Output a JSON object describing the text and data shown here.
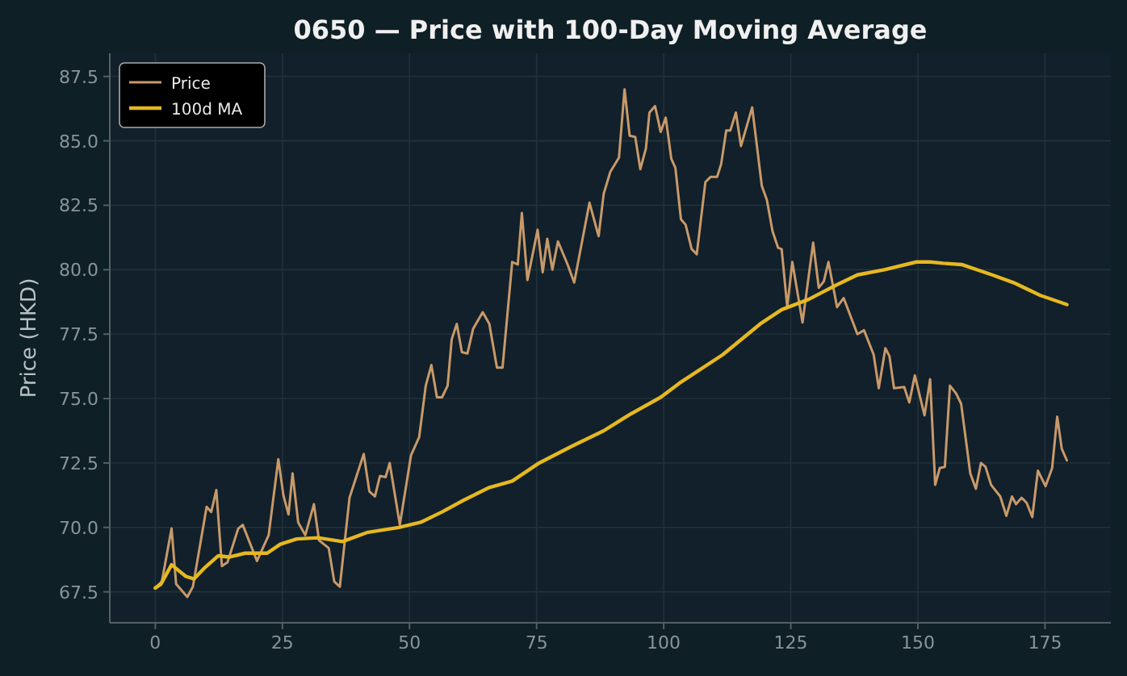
{
  "chart_data": {
    "type": "line",
    "title": "0650 — Price with 100-Day Moving Average",
    "ylabel": "Price (HKD)",
    "xlim": [
      -8.95,
      187.95
    ],
    "ylim": [
      66.3,
      88.4
    ],
    "xticks": [
      0,
      25,
      50,
      75,
      100,
      125,
      150,
      175
    ],
    "yticks": [
      {
        "value": 67.5,
        "label": "67.5"
      },
      {
        "value": 70,
        "label": "70.0"
      },
      {
        "value": 72.5,
        "label": "72.5"
      },
      {
        "value": 75,
        "label": "75.0"
      },
      {
        "value": 77.5,
        "label": "77.5"
      },
      {
        "value": 80,
        "label": "80.0"
      },
      {
        "value": 82.5,
        "label": "82.5"
      },
      {
        "value": 85,
        "label": "85.0"
      },
      {
        "value": 87.5,
        "label": "87.5"
      }
    ],
    "grid": true,
    "legend": "top left",
    "line_style": "solid",
    "marker": "none",
    "series": [
      {
        "name": "Price",
        "color": "#c8996a",
        "x": [
          0,
          1.3,
          3.2,
          4.1,
          6.3,
          7.4,
          10.1,
          11,
          12,
          13.1,
          14.2,
          16.3,
          17.2,
          20,
          22.3,
          24.2,
          25.2,
          26.2,
          27,
          28.1,
          29.5,
          31.2,
          32.2,
          34.1,
          35.2,
          36.3,
          38.2,
          41,
          42.1,
          43.2,
          44.2,
          45.3,
          46.1,
          48.1,
          50.3,
          51.9,
          53.2,
          54.3,
          55.4,
          56.4,
          57.5,
          58.3,
          59.3,
          60.3,
          61.4,
          62.5,
          64.4,
          65.7,
          67.2,
          68.3,
          70.2,
          71.3,
          72.1,
          73.2,
          75.2,
          76.2,
          77.1,
          78.1,
          79.2,
          81.1,
          82.4,
          85.4,
          87.2,
          88.2,
          89.5,
          91.2,
          92.3,
          93.3,
          94.4,
          95.4,
          96.5,
          97.2,
          98.3,
          99.4,
          100.4,
          101.5,
          102.3,
          103.4,
          104.3,
          105.5,
          106.5,
          108.2,
          109.2,
          110.5,
          111.3,
          112.3,
          113.1,
          114.2,
          115.2,
          117.4,
          119.3,
          120.3,
          121.4,
          122.5,
          123.2,
          124.3,
          125.3,
          127.3,
          129.4,
          130.5,
          131.5,
          132.4,
          134.1,
          135.4,
          138.1,
          139.4,
          141.3,
          142.3,
          143.6,
          144.4,
          145.3,
          147.3,
          148.3,
          149.4,
          151.3,
          152.4,
          153.4,
          154.3,
          155.3,
          156.3,
          157.5,
          158.5,
          160.3,
          161.4,
          162.4,
          163.3,
          164.4,
          166.2,
          167.4,
          168.5,
          169.3,
          170.4,
          171.4,
          172.5,
          173.6,
          175.1,
          176.4,
          177.4,
          178.3,
          179.3
        ],
        "values": [
          67.65,
          67.9,
          69.96,
          67.8,
          67.3,
          67.7,
          70.8,
          70.6,
          71.45,
          68.5,
          68.65,
          69.95,
          70.1,
          68.7,
          69.7,
          72.65,
          71.25,
          70.5,
          72.1,
          70.2,
          69.7,
          70.9,
          69.5,
          69.2,
          67.9,
          67.7,
          71.15,
          72.85,
          71.4,
          71.2,
          72,
          71.95,
          72.5,
          70.1,
          72.8,
          73.5,
          75.5,
          76.3,
          75.05,
          75.05,
          75.5,
          77.3,
          77.9,
          76.8,
          76.75,
          77.7,
          78.35,
          77.9,
          76.2,
          76.2,
          80.3,
          80.2,
          82.2,
          79.6,
          81.55,
          79.9,
          81.2,
          80,
          81.1,
          80.2,
          79.5,
          82.6,
          81.3,
          82.95,
          83.8,
          84.35,
          87,
          85.2,
          85.15,
          83.9,
          84.7,
          86.1,
          86.35,
          85.35,
          85.9,
          84.3,
          83.95,
          81.95,
          81.75,
          80.8,
          80.6,
          83.4,
          83.6,
          83.6,
          84.1,
          85.4,
          85.4,
          86.1,
          84.8,
          86.3,
          83.25,
          82.7,
          81.5,
          80.85,
          80.8,
          78.55,
          80.3,
          77.95,
          81.05,
          79.3,
          79.55,
          80.3,
          78.55,
          78.9,
          77.5,
          77.65,
          76.7,
          75.4,
          76.95,
          76.65,
          75.4,
          75.45,
          74.85,
          75.9,
          74.35,
          75.75,
          71.65,
          72.3,
          72.35,
          75.5,
          75.2,
          74.8,
          72.1,
          71.5,
          72.5,
          72.35,
          71.65,
          71.2,
          70.45,
          71.2,
          70.9,
          71.15,
          70.95,
          70.4,
          72.2,
          71.6,
          72.3,
          74.3,
          73.05,
          72.6
        ]
      },
      {
        "name": "100d MA",
        "color": "#e6b820",
        "x": [
          0,
          1.1,
          3.2,
          6,
          7.6,
          9.8,
          12.4,
          14.5,
          17.7,
          22,
          24.6,
          27.8,
          32,
          36.8,
          41.6,
          47.9,
          52.2,
          56.4,
          60.6,
          65.7,
          70.2,
          75.5,
          81.9,
          88.2,
          93.5,
          99.4,
          103.1,
          111.6,
          119,
          123.2,
          128.5,
          133.9,
          138.1,
          143.4,
          149.7,
          152.4,
          155,
          158.6,
          164.6,
          168.8,
          174.1,
          179.3
        ],
        "values": [
          67.65,
          67.8,
          68.55,
          68.1,
          68,
          68.45,
          68.9,
          68.85,
          69,
          69,
          69.35,
          69.55,
          69.6,
          69.45,
          69.8,
          70,
          70.2,
          70.6,
          71.05,
          71.55,
          71.8,
          72.5,
          73.15,
          73.75,
          74.4,
          75.05,
          75.6,
          76.7,
          77.9,
          78.45,
          78.85,
          79.4,
          79.8,
          80,
          80.3,
          80.3,
          80.25,
          80.2,
          79.8,
          79.5,
          79,
          78.65
        ]
      }
    ]
  }
}
